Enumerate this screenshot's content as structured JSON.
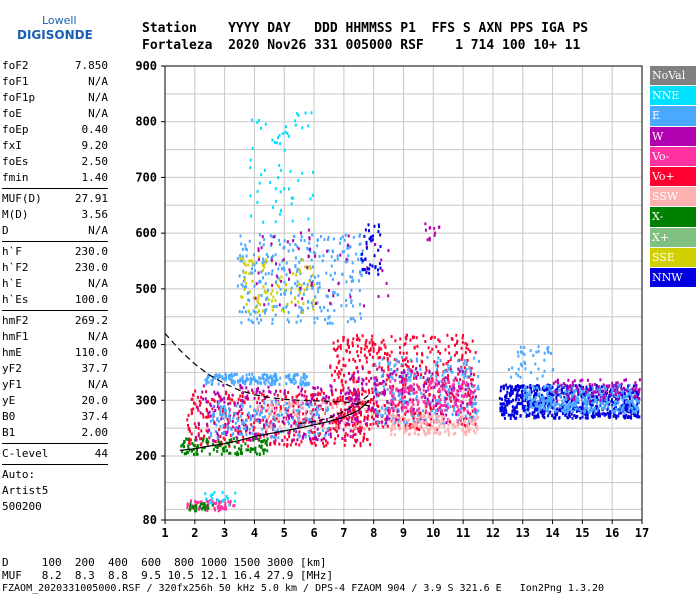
{
  "logo": {
    "line1": "Lowell",
    "line2": "DIGISONDE"
  },
  "header": {
    "row1": "Station    YYYY DAY   DDD HHMMSS P1  FFS S AXN PPS IGA PS",
    "row2": "Fortaleza  2020 Nov26 331 005000 RSF    1 714 100 10+ 11"
  },
  "params": [
    {
      "k": "foF2",
      "v": "7.850"
    },
    {
      "k": "foF1",
      "v": "N/A"
    },
    {
      "k": "foF1p",
      "v": "N/A"
    },
    {
      "k": "foE",
      "v": "N/A"
    },
    {
      "k": "foEp",
      "v": "0.40"
    },
    {
      "k": "fxI",
      "v": "9.20"
    },
    {
      "k": "foEs",
      "v": "2.50"
    },
    {
      "k": "fmin",
      "v": "1.40"
    },
    {
      "sep": true
    },
    {
      "k": "MUF(D)",
      "v": "27.91"
    },
    {
      "k": "M(D)",
      "v": "3.56"
    },
    {
      "k": "D",
      "v": "N/A"
    },
    {
      "sep": true
    },
    {
      "k": "h`F",
      "v": "230.0"
    },
    {
      "k": "h`F2",
      "v": "230.0"
    },
    {
      "k": "h`E",
      "v": "N/A"
    },
    {
      "k": "h`Es",
      "v": "100.0"
    },
    {
      "sep": true
    },
    {
      "k": "hmF2",
      "v": "269.2"
    },
    {
      "k": "hmF1",
      "v": "N/A"
    },
    {
      "k": "hmE",
      "v": "110.0"
    },
    {
      "k": "yF2",
      "v": "37.7"
    },
    {
      "k": "yF1",
      "v": "N/A"
    },
    {
      "k": "yE",
      "v": "20.0"
    },
    {
      "k": "B0",
      "v": "37.4"
    },
    {
      "k": "B1",
      "v": "2.00"
    },
    {
      "sep": true
    },
    {
      "k": "C-level",
      "v": "44"
    },
    {
      "sep": true
    }
  ],
  "auto": {
    "line1": "Auto:",
    "line2": "Artist5",
    "line3": "500200"
  },
  "legend": [
    {
      "label": "NoVal",
      "color": "#808080"
    },
    {
      "label": "NNE",
      "color": "#00e0ff"
    },
    {
      "label": "E",
      "color": "#4aa8ff"
    },
    {
      "label": "W",
      "color": "#b000b0"
    },
    {
      "label": "Vo-",
      "color": "#ff30a0"
    },
    {
      "label": "Vo+",
      "color": "#ff0030"
    },
    {
      "label": "SSW",
      "color": "#ffb0b0"
    },
    {
      "label": "X-",
      "color": "#008000"
    },
    {
      "label": "X+",
      "color": "#80c080"
    },
    {
      "label": "SSE",
      "color": "#d0d000"
    },
    {
      "label": "NNW",
      "color": "#0000e0"
    }
  ],
  "footer": {
    "row1": "D     100  200  400  600  800 1000 1500 3000 [km]",
    "row2": "MUF   8.2  8.3  8.8  9.5 10.5 12.1 16.4 27.9 [MHz]",
    "row3": "FZAOM_2020331005000.RSF / 320fx256h 50 kHz 5.0 km / DPS-4 FZAOM 904 / 3.9 S 321.6 E   Ion2Png 1.3.20"
  },
  "chart_data": {
    "type": "scatter",
    "title": "",
    "xlabel": "",
    "ylabel": "",
    "xlim": [
      1,
      17
    ],
    "ylim": [
      80,
      900
    ],
    "x_ticks": [
      1,
      2,
      3,
      4,
      5,
      6,
      7,
      8,
      9,
      10,
      11,
      12,
      13,
      14,
      15,
      16,
      17
    ],
    "y_ticks": [
      80,
      200,
      300,
      400,
      500,
      600,
      700,
      800,
      900
    ],
    "grid": true,
    "legend_position": "right",
    "clusters": [
      {
        "name": "Es",
        "color": "#ff30a0",
        "xmin": 1.7,
        "xmax": 3.3,
        "ymin": 100,
        "ymax": 120,
        "n": 60
      },
      {
        "name": "Es-green",
        "color": "#008000",
        "xmin": 1.7,
        "xmax": 2.6,
        "ymin": 100,
        "ymax": 115,
        "n": 25
      },
      {
        "name": "Es-cyan",
        "color": "#00e0ff",
        "xmin": 2.2,
        "xmax": 3.4,
        "ymin": 110,
        "ymax": 135,
        "n": 20
      },
      {
        "name": "F-trace-o",
        "color": "#ff0030",
        "xmin": 1.7,
        "xmax": 8,
        "ymin": 220,
        "ymax": 320,
        "n": 420
      },
      {
        "name": "F-trace-green",
        "color": "#008000",
        "xmin": 1.5,
        "xmax": 4.5,
        "ymin": 205,
        "ymax": 235,
        "n": 120
      },
      {
        "name": "F-trace-W",
        "color": "#b000b0",
        "xmin": 2,
        "xmax": 7.5,
        "ymin": 230,
        "ymax": 330,
        "n": 260
      },
      {
        "name": "F-trace-E",
        "color": "#4aa8ff",
        "xmin": 2.5,
        "xmax": 6.5,
        "ymin": 235,
        "ymax": 300,
        "n": 180
      },
      {
        "name": "F-trace-SSW",
        "color": "#ffb0b0",
        "xmin": 4,
        "xmax": 10,
        "ymin": 250,
        "ymax": 300,
        "n": 160
      },
      {
        "name": "E-layer-band",
        "color": "#4aa8ff",
        "xmin": 2.3,
        "xmax": 5.8,
        "ymin": 330,
        "ymax": 350,
        "n": 180
      },
      {
        "name": "F2-spread-red",
        "color": "#ff0030",
        "xmin": 6.5,
        "xmax": 11.4,
        "ymin": 250,
        "ymax": 420,
        "n": 500
      },
      {
        "name": "F2-spread-blue",
        "color": "#4aa8ff",
        "xmin": 8,
        "xmax": 11.5,
        "ymin": 260,
        "ymax": 380,
        "n": 260
      },
      {
        "name": "F2-spread-W",
        "color": "#b000b0",
        "xmin": 7,
        "xmax": 11.4,
        "ymin": 260,
        "ymax": 360,
        "n": 200
      },
      {
        "name": "F2-spread-SSW",
        "color": "#ffb0b0",
        "xmin": 8.5,
        "xmax": 11.5,
        "ymin": 240,
        "ymax": 275,
        "n": 140
      },
      {
        "name": "F2-pink",
        "color": "#ff30a0",
        "xmin": 8.5,
        "xmax": 11.4,
        "ymin": 280,
        "ymax": 340,
        "n": 140
      },
      {
        "name": "far-blue",
        "color": "#0000e0",
        "xmin": 12.2,
        "xmax": 16.9,
        "ymin": 270,
        "ymax": 330,
        "n": 700
      },
      {
        "name": "far-cyan",
        "color": "#4aa8ff",
        "xmin": 13,
        "xmax": 16.9,
        "ymin": 280,
        "ymax": 330,
        "n": 350
      },
      {
        "name": "far-purple",
        "color": "#b000b0",
        "xmin": 14,
        "xmax": 16.9,
        "ymin": 300,
        "ymax": 340,
        "n": 90
      },
      {
        "name": "far-high",
        "color": "#4aa8ff",
        "xmin": 12.5,
        "xmax": 14,
        "ymin": 340,
        "ymax": 400,
        "n": 40
      },
      {
        "name": "multi-hop",
        "color": "#4aa8ff",
        "xmin": 3.4,
        "xmax": 7.6,
        "ymin": 440,
        "ymax": 600,
        "n": 300
      },
      {
        "name": "multi-hop-mix",
        "color": "#d0d000",
        "xmin": 3.5,
        "xmax": 6,
        "ymin": 460,
        "ymax": 560,
        "n": 90
      },
      {
        "name": "multi-hop-W",
        "color": "#b000b0",
        "xmin": 4,
        "xmax": 8.5,
        "ymin": 470,
        "ymax": 610,
        "n": 60
      },
      {
        "name": "multi-hop-NNW",
        "color": "#0000e0",
        "xmin": 7.5,
        "xmax": 8.2,
        "ymin": 520,
        "ymax": 620,
        "n": 40
      },
      {
        "name": "high-echo",
        "color": "#00e0ff",
        "xmin": 3.8,
        "xmax": 6,
        "ymin": 620,
        "ymax": 820,
        "n": 60
      },
      {
        "name": "high-W",
        "color": "#b000b0",
        "xmin": 9.7,
        "xmax": 10.3,
        "ymin": 590,
        "ymax": 620,
        "n": 12
      }
    ],
    "curves": [
      {
        "name": "virtual-height",
        "style": "dashed",
        "color": "#000000",
        "x": [
          1,
          1.5,
          2,
          2.5,
          3,
          3.5,
          4,
          4.5,
          5,
          5.5,
          6,
          6.5,
          7,
          7.5,
          7.85
        ],
        "y": [
          420,
          390,
          365,
          345,
          330,
          318,
          310,
          305,
          302,
          300,
          299,
          298,
          297,
          293,
          290
        ]
      },
      {
        "name": "trace",
        "style": "solid",
        "color": "#000000",
        "x": [
          1.5,
          2,
          2.5,
          3,
          3.5,
          4,
          4.5,
          5,
          5.5,
          6,
          6.5,
          7,
          7.5,
          7.85
        ],
        "y": [
          210,
          213,
          218,
          222,
          228,
          235,
          240,
          245,
          250,
          256,
          262,
          270,
          282,
          300
        ]
      },
      {
        "name": "profile",
        "style": "dashed",
        "color": "#000000",
        "x": [
          5.5,
          6,
          6.5,
          7,
          7.5,
          7.85
        ],
        "y": [
          258,
          262,
          268,
          280,
          295,
          310
        ]
      }
    ]
  }
}
